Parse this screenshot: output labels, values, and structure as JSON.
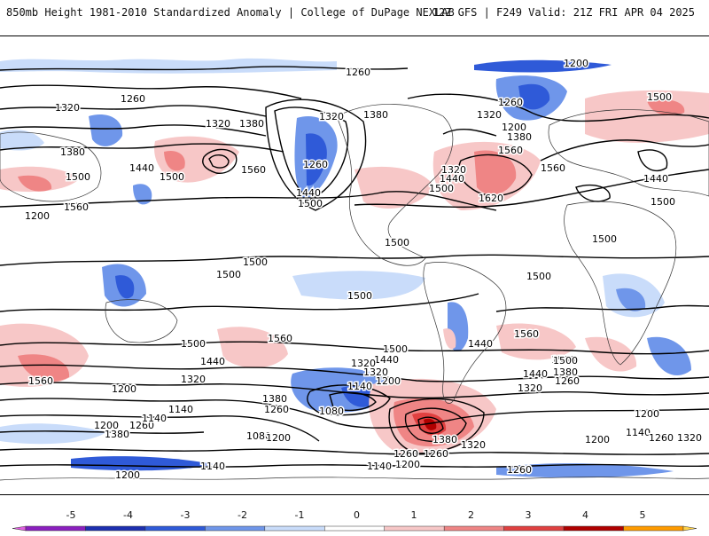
{
  "header": {
    "title": "850mb Height 1981-2010 Standardized Anomaly | College of DuPage NEXLAB",
    "run_info": "12Z GFS | F249 Valid: 21Z FRI APR 04 2025"
  },
  "contour_labels": [
    {
      "text": "1200"
    },
    {
      "text": "1260"
    },
    {
      "text": "1260"
    },
    {
      "text": "1320"
    },
    {
      "text": "1380"
    },
    {
      "text": "1440"
    },
    {
      "text": "1500"
    },
    {
      "text": "1560"
    },
    {
      "text": "1320"
    },
    {
      "text": "1380"
    },
    {
      "text": "1560"
    },
    {
      "text": "1500"
    },
    {
      "text": "1320"
    },
    {
      "text": "1380"
    },
    {
      "text": "1260"
    },
    {
      "text": "1440"
    },
    {
      "text": "1500"
    },
    {
      "text": "1260"
    },
    {
      "text": "1200"
    },
    {
      "text": "1380"
    },
    {
      "text": "1320"
    },
    {
      "text": "1320"
    },
    {
      "text": "1440"
    },
    {
      "text": "1500"
    },
    {
      "text": "1560"
    },
    {
      "text": "1620"
    },
    {
      "text": "1560"
    },
    {
      "text": "1500"
    },
    {
      "text": "1440"
    },
    {
      "text": "1500"
    },
    {
      "text": "1500"
    },
    {
      "text": "1500"
    },
    {
      "text": "1500"
    },
    {
      "text": "1500"
    },
    {
      "text": "1500"
    },
    {
      "text": "1500"
    },
    {
      "text": "1560"
    },
    {
      "text": "1500"
    },
    {
      "text": "1560"
    },
    {
      "text": "1440"
    },
    {
      "text": "1320"
    },
    {
      "text": "1200"
    },
    {
      "text": "1140"
    },
    {
      "text": "1200"
    },
    {
      "text": "1380"
    },
    {
      "text": "1260"
    },
    {
      "text": "1140"
    },
    {
      "text": "1080"
    },
    {
      "text": "1260"
    },
    {
      "text": "1320"
    },
    {
      "text": "1380"
    },
    {
      "text": "1440"
    },
    {
      "text": "1500"
    },
    {
      "text": "1320"
    },
    {
      "text": "1140"
    },
    {
      "text": "1200"
    },
    {
      "text": "1080"
    },
    {
      "text": "1380"
    },
    {
      "text": "1320"
    },
    {
      "text": "1260"
    },
    {
      "text": "1200"
    },
    {
      "text": "1140"
    },
    {
      "text": "1260"
    },
    {
      "text": "1200"
    },
    {
      "text": "1500"
    },
    {
      "text": "1440"
    },
    {
      "text": "1380"
    },
    {
      "text": "1260"
    },
    {
      "text": "1320"
    },
    {
      "text": "1200"
    },
    {
      "text": "1140"
    },
    {
      "text": "1200"
    },
    {
      "text": "1260"
    },
    {
      "text": "1320"
    },
    {
      "text": "1560"
    },
    {
      "text": "1500"
    },
    {
      "text": "1440"
    },
    {
      "text": "1140"
    },
    {
      "text": "1200"
    },
    {
      "text": "1260"
    },
    {
      "text": "1200"
    }
  ],
  "legend": {
    "tick_labels": [
      "-5",
      "-4",
      "-3",
      "-2",
      "-1",
      "0",
      "1",
      "2",
      "3",
      "4",
      "5"
    ],
    "colors": [
      "#e060e0",
      "#8b1fbf",
      "#1d2fb0",
      "#2f5ad8",
      "#6f96ea",
      "#c9dcfa",
      "#ffffff",
      "#f7c7c7",
      "#ef8585",
      "#e04040",
      "#b00000",
      "#ff9b00",
      "#ffd24a"
    ]
  }
}
